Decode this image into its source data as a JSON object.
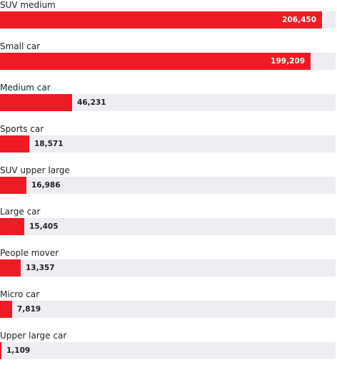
{
  "chart_data": {
    "type": "bar",
    "orientation": "horizontal",
    "categories": [
      "SUV medium",
      "Small car",
      "Medium car",
      "Sports car",
      "SUV upper large",
      "Large car",
      "People mover",
      "Micro car",
      "Upper large car"
    ],
    "values": [
      206450,
      199209,
      46231,
      18571,
      16986,
      15405,
      13357,
      7819,
      1109
    ],
    "value_labels": [
      "206,450",
      "199,209",
      "46,231",
      "18,571",
      "16,986",
      "15,405",
      "13,357",
      "7,819",
      "1,109"
    ],
    "xlim": [
      0,
      215000
    ],
    "grid": false,
    "colors": {
      "bar": "#ed1c24",
      "track": "#eeeef2",
      "text": "#1e1e1e"
    }
  }
}
